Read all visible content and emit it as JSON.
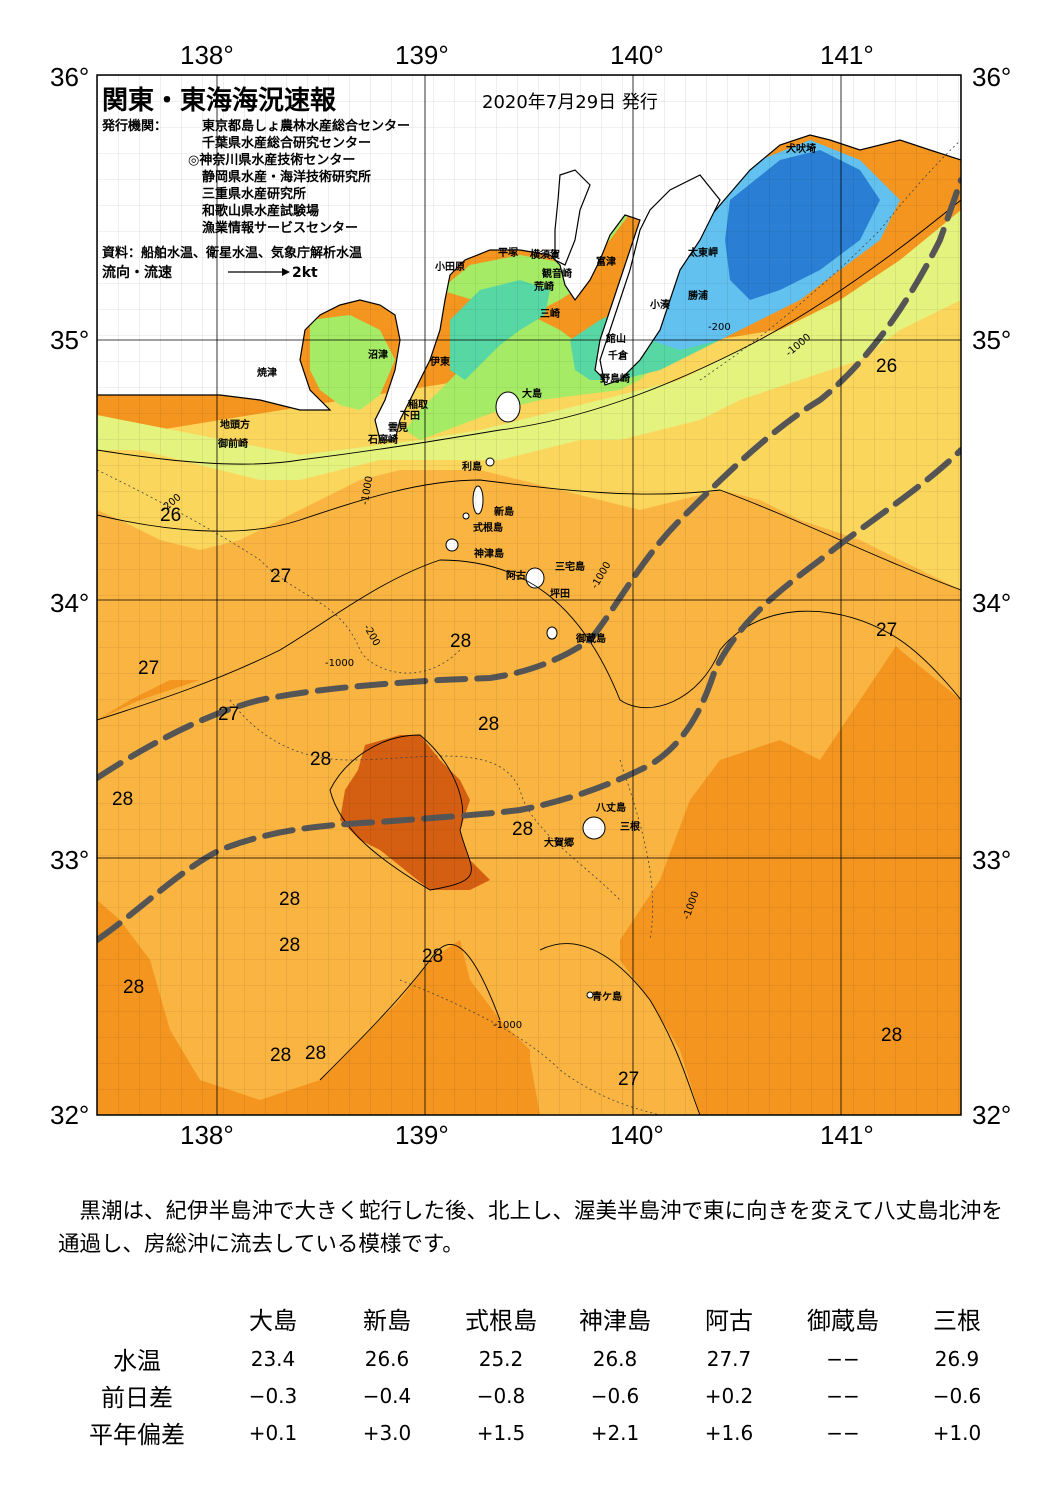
{
  "map": {
    "title": "関東・東海海況速報",
    "issue_date": "2020年7月29日 発行",
    "publisher_label": "発行機関：",
    "publishers": [
      "東京都島しょ農林水産総合センター",
      "千葉県水産総合研究センター",
      "◎神奈川県水産技術センター",
      "静岡県水産・海洋技術研究所",
      "三重県水産研究所",
      "和歌山県水産試験場",
      "漁業情報サービスセンター"
    ],
    "sources": "資料：船舶水温、衛星水温、気象庁解析水温",
    "flow_label": "流向・流速",
    "flow_scale": "2kt",
    "lon_labels": [
      "138°",
      "139°",
      "140°",
      "141°"
    ],
    "lat_labels": [
      "36°",
      "35°",
      "34°",
      "33°",
      "32°"
    ],
    "place_names": [
      "犬吠埼",
      "太東岬",
      "勝浦",
      "小湊",
      "富津",
      "横須賀",
      "観音崎",
      "荒崎",
      "三崎",
      "館山",
      "千倉",
      "野島崎",
      "平塚",
      "小田原",
      "沼津",
      "伊東",
      "焼津",
      "稲取",
      "下田",
      "雲見",
      "石廊崎",
      "地頭方",
      "御前崎",
      "大島",
      "利島",
      "新島",
      "式根島",
      "神津島",
      "三宅島",
      "阿古",
      "坪田",
      "御蔵島",
      "八丈島",
      "三根",
      "大賀郷",
      "青ケ島"
    ],
    "temperature_labels": [
      "26",
      "26",
      "27",
      "27",
      "27",
      "27",
      "28",
      "28",
      "28",
      "28",
      "28",
      "28",
      "28",
      "28",
      "28",
      "28",
      "28",
      "28",
      "27"
    ],
    "depth_labels": [
      "-200",
      "-1000"
    ],
    "colors": {
      "t_22": "#2a7fd4",
      "t_23": "#62c1ee",
      "t_24": "#57d7a4",
      "t_25": "#a6eb66",
      "t_25_5": "#e4f27e",
      "t_26": "#fbd65c",
      "t_27": "#f9b441",
      "t_28": "#f3951f",
      "t_29": "#d45f12",
      "land": "#ffffff",
      "kuroshio": "#555555"
    }
  },
  "description": "黒潮は、紀伊半島沖で大きく蛇行した後、北上し、渥美半島沖で東に向きを変えて八丈島北沖を通過し、房総沖に流去している模様です。",
  "stations": {
    "names": [
      "大島",
      "新島",
      "式根島",
      "神津島",
      "阿古",
      "御蔵島",
      "三根"
    ],
    "rows": [
      {
        "label": "水温",
        "values": [
          "23.4",
          "26.6",
          "25.2",
          "26.8",
          "27.7",
          "−−",
          "26.9"
        ]
      },
      {
        "label": "前日差",
        "values": [
          "−0.3",
          "−0.4",
          "−0.8",
          "−0.6",
          "+0.2",
          "−−",
          "−0.6"
        ]
      },
      {
        "label": "平年偏差",
        "values": [
          "+0.1",
          "+3.0",
          "+1.5",
          "+2.1",
          "+1.6",
          "−−",
          "+1.0"
        ]
      }
    ]
  }
}
